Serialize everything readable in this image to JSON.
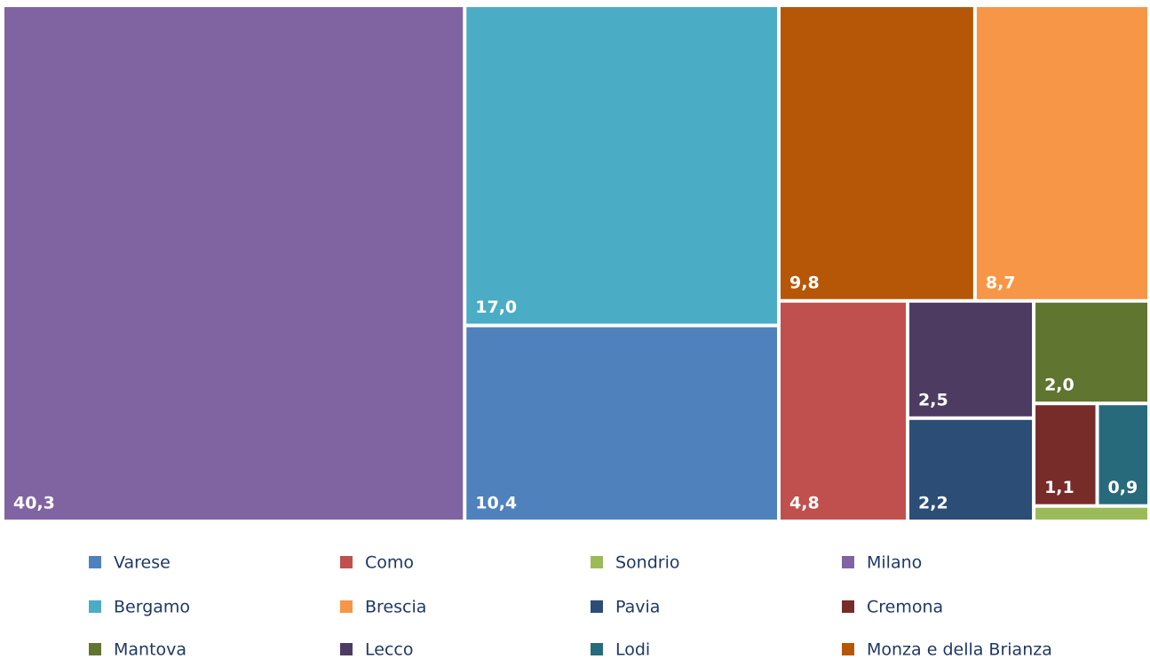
{
  "chart_data": {
    "type": "treemap",
    "categories": [
      "Varese",
      "Como",
      "Sondrio",
      "Milano",
      "Bergamo",
      "Brescia",
      "Pavia",
      "Cremona",
      "Mantova",
      "Lecco",
      "Lodi",
      "Monza e della Brianza"
    ],
    "values": [
      10.4,
      4.8,
      0.3,
      40.3,
      17.0,
      8.7,
      2.2,
      1.1,
      2.0,
      2.5,
      0.9,
      9.8
    ],
    "value_labels": [
      "10,4",
      "4,8",
      null,
      "40,3",
      "17,0",
      "8,7",
      "2,2",
      "1,1",
      "2,0",
      "2,5",
      "0,9",
      "9,8"
    ],
    "colors": [
      "#4f81bd",
      "#c0504d",
      "#9bbb59",
      "#8064a2",
      "#4bacc6",
      "#f79646",
      "#2c4d75",
      "#772c2a",
      "#5f7530",
      "#4d3b62",
      "#276a7c",
      "#b65708"
    ],
    "legend": "bottom"
  }
}
